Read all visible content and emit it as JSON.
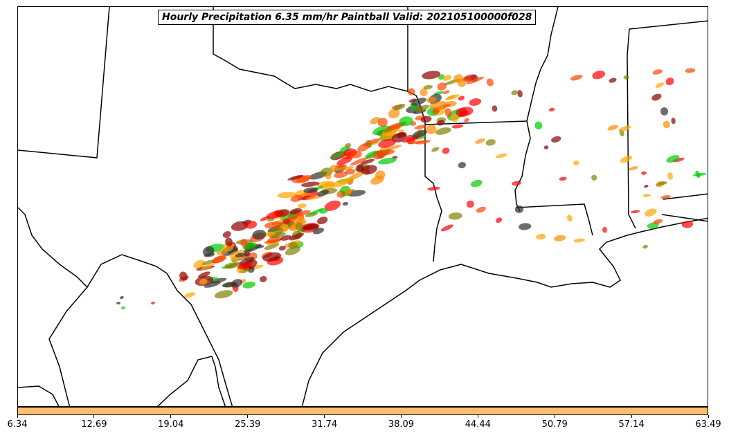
{
  "title": "Hourly Precipitation 6.35 mm/hr Paintball Valid: 202105100000f028",
  "colorbar": {
    "color": "#fdbf6f",
    "ticks": [
      "6.34",
      "12.69",
      "19.04",
      "25.39",
      "31.74",
      "38.09",
      "44.44",
      "50.79",
      "57.14",
      "63.49"
    ]
  },
  "palette": [
    "#ff8c00",
    "#ffa500",
    "#ff0000",
    "#00cc00",
    "#8b0000",
    "#808000",
    "#2f2f2f",
    "#ff4500"
  ]
}
